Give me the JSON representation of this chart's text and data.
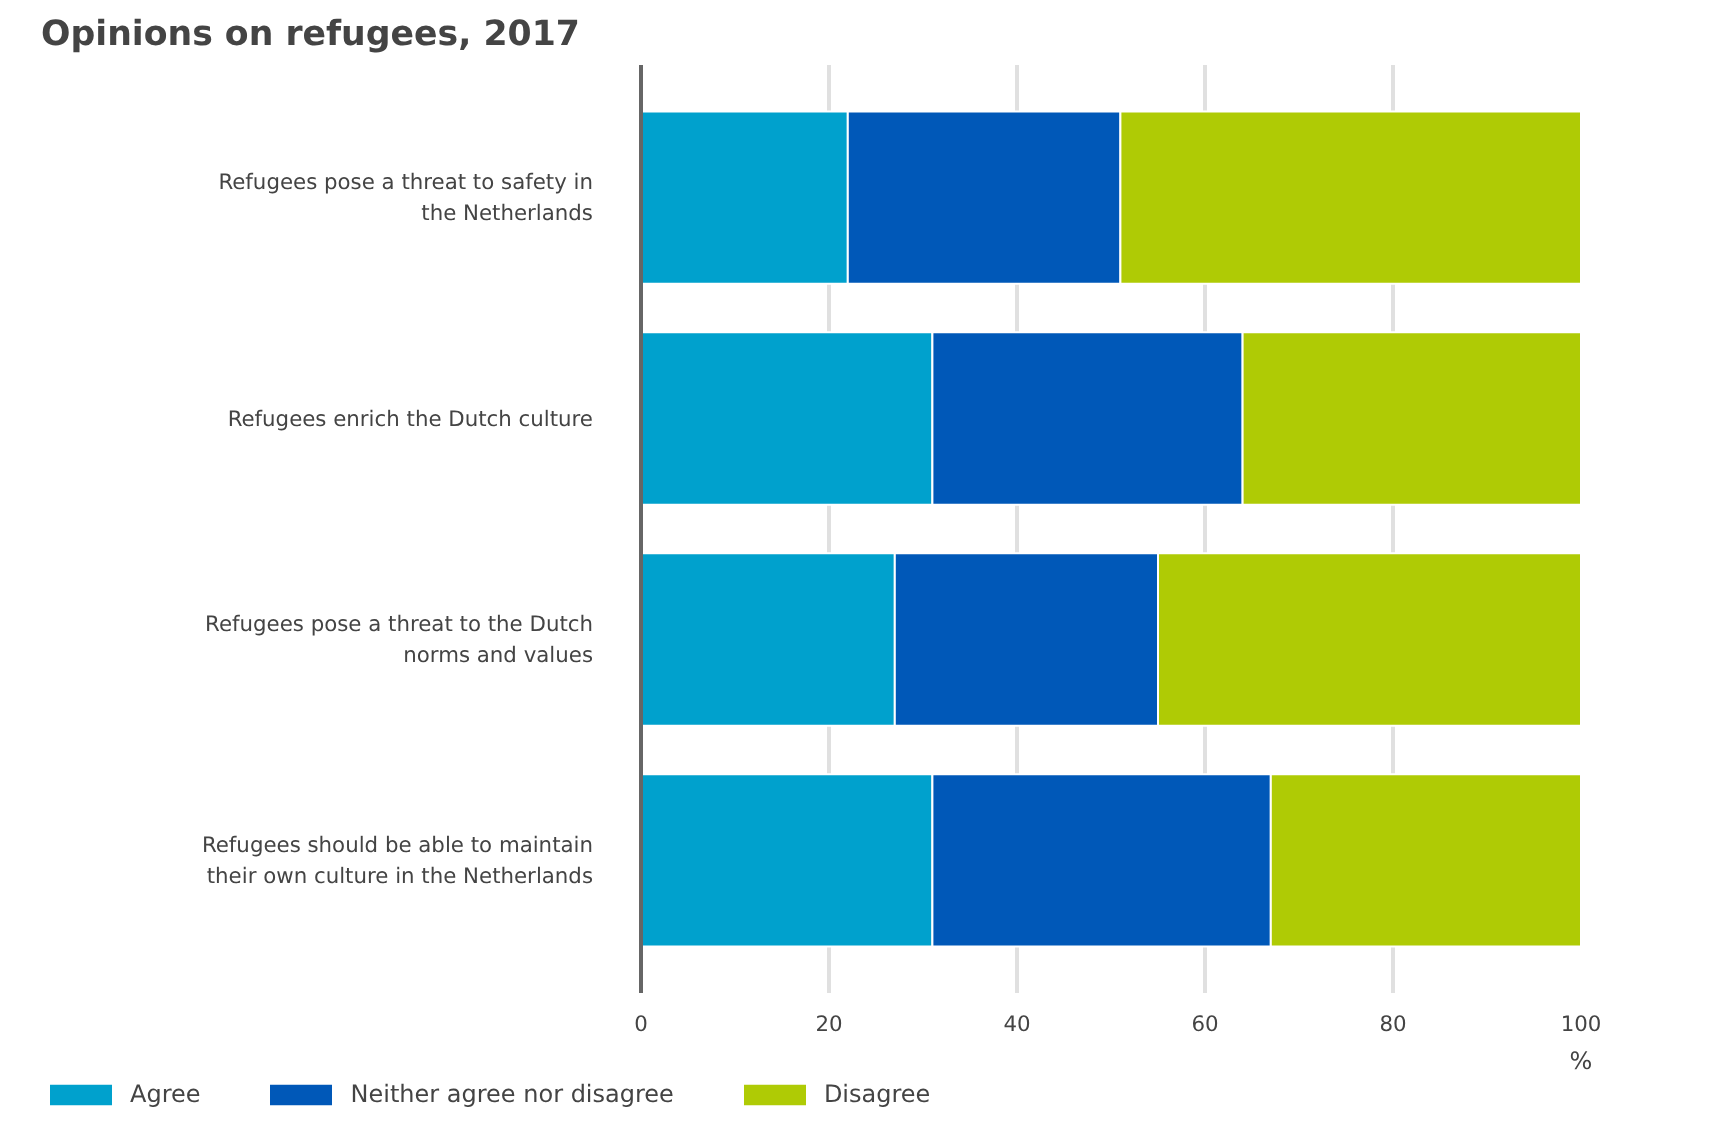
{
  "chart_data": {
    "type": "bar",
    "orientation": "horizontal",
    "stacked": true,
    "title": "Opinions on refugees, 2017",
    "xlabel": "%",
    "categories": [
      "Refugees pose a threat to safety in the Netherlands",
      "Refugees enrich the Dutch culture",
      "Refugees pose a threat to the Dutch norms and values",
      "Refugees should be able to maintain their own culture in the Netherlands"
    ],
    "series": [
      {
        "name": "Agree",
        "color": "#00a1cd",
        "values": [
          22,
          31,
          27,
          31
        ]
      },
      {
        "name": "Neither agree nor disagree",
        "color": "#0058b8",
        "values": [
          29,
          33,
          28,
          36
        ]
      },
      {
        "name": "Disagree",
        "color": "#afcb05",
        "values": [
          49,
          36,
          45,
          33
        ]
      }
    ],
    "xlim": [
      0,
      100
    ],
    "xticks": [
      0,
      20,
      40,
      60,
      80,
      100
    ],
    "grid": "x",
    "legend": "bottom left"
  }
}
